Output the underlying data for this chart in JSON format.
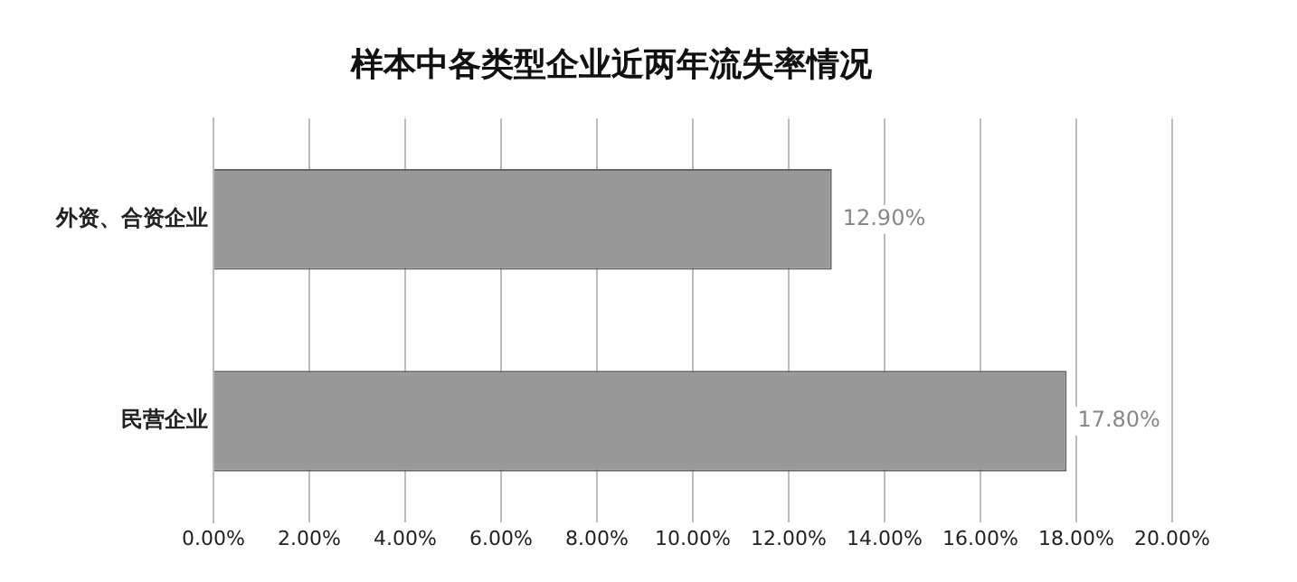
{
  "chart_data": {
    "type": "bar",
    "orientation": "horizontal",
    "title": "样本中各类型企业近两年流失率情况",
    "categories": [
      "外资、合资企业",
      "民营企业"
    ],
    "values": [
      12.9,
      17.8
    ],
    "color": "#999999",
    "value_labels": [
      "12.90%",
      "17.80%"
    ],
    "xlim": [
      0,
      20
    ],
    "xticks": [
      {
        "value": 0,
        "label": "0.00%"
      },
      {
        "value": 2,
        "label": "2.00%"
      },
      {
        "value": 4,
        "label": "4.00%"
      },
      {
        "value": 6,
        "label": "6.00%"
      },
      {
        "value": 8,
        "label": "8.00%"
      },
      {
        "value": 10,
        "label": "10.00%"
      },
      {
        "value": 12,
        "label": "12.00%"
      },
      {
        "value": 14,
        "label": "14.00%"
      },
      {
        "value": 16,
        "label": "16.00%"
      },
      {
        "value": 18,
        "label": "18.00%"
      },
      {
        "value": 20,
        "label": "20.00%"
      }
    ],
    "grid": "x",
    "legend": false
  }
}
